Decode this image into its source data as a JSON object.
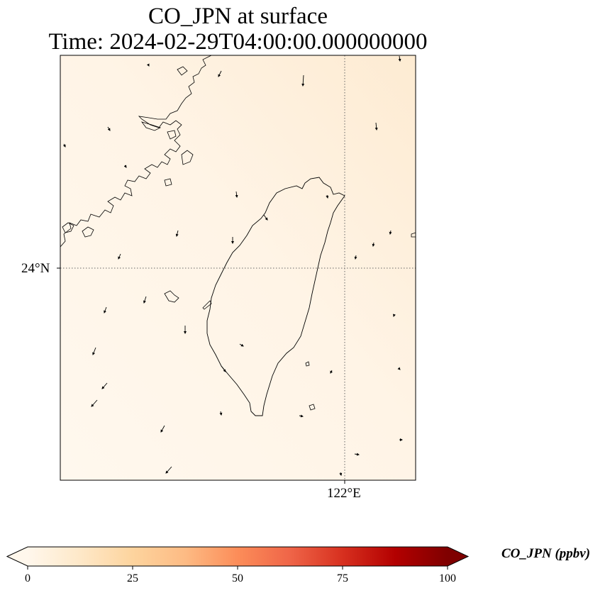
{
  "title": {
    "line1": "CO_JPN at surface",
    "line2": "Time: 2024-02-29T04:00:00.000000000"
  },
  "map": {
    "lat_tick": "24°N",
    "lon_tick": "122°E",
    "gridlines": "dotted",
    "features": [
      "taiwan-coastline",
      "china-coastline",
      "wind-vectors"
    ],
    "colors": {
      "background_low": "#fff7ec",
      "background_high": "#fdebd0",
      "coastline": "#000000"
    }
  },
  "colorbar": {
    "label": "CO_JPN (ppbv)",
    "ticks": [
      "0",
      "25",
      "50",
      "75",
      "100"
    ],
    "min": 0,
    "max": 100,
    "extend": "both",
    "colormap": "OrRd",
    "colors": [
      "#fff7ec",
      "#fee8c8",
      "#fdd49e",
      "#fdbb84",
      "#fc8d59",
      "#ef6548",
      "#d7301f",
      "#b30000",
      "#7f0000"
    ]
  }
}
